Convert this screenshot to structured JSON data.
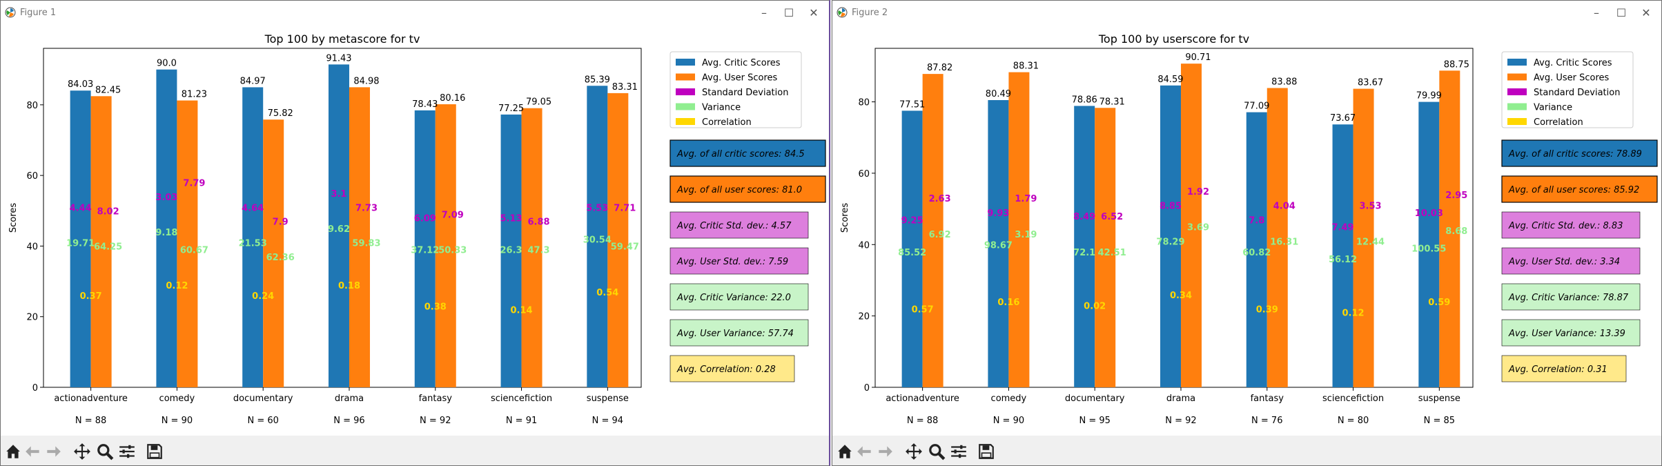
{
  "windows": [
    {
      "title": "Figure 1",
      "chart_data": {
        "type": "bar",
        "title": "Top 100 by metascore for tv",
        "ylabel": "Scores",
        "xlabel": "",
        "ylim": [
          0,
          96
        ],
        "yticks": [
          0,
          20,
          40,
          60,
          80
        ],
        "grid": false,
        "legend_position": "upper-right-outside",
        "categories": [
          "actionadventure",
          "comedy",
          "documentary",
          "drama",
          "fantasy",
          "sciencefiction",
          "suspense"
        ],
        "counts": [
          "N = 88",
          "N = 90",
          "N = 60",
          "N = 96",
          "N = 92",
          "N = 91",
          "N = 94"
        ],
        "series": [
          {
            "name": "Avg. Critic Scores",
            "color": "#1f77b4",
            "values": [
              84.03,
              90.0,
              84.97,
              91.43,
              78.43,
              77.25,
              85.39
            ],
            "labels": [
              "84.03",
              "90.0",
              "84.97",
              "91.43",
              "78.43",
              "77.25",
              "85.39"
            ]
          },
          {
            "name": "Avg. User Scores",
            "color": "#ff7f0e",
            "values": [
              82.45,
              81.23,
              75.82,
              84.98,
              80.16,
              79.05,
              83.31
            ],
            "labels": [
              "82.45",
              "81.23",
              "75.82",
              "84.98",
              "80.16",
              "79.05",
              "83.31"
            ]
          }
        ],
        "legend_only": [
          {
            "name": "Standard Deviation",
            "color": "#bf00bf"
          },
          {
            "name": "Variance",
            "color": "#90ee90"
          },
          {
            "name": "Correlation",
            "color": "#ffd700"
          }
        ],
        "annotations": {
          "critic_std": [
            "4.44",
            "3.03",
            "4.64",
            "3.1",
            "6.09",
            "5.13",
            "5.53"
          ],
          "user_std": [
            "8.02",
            "7.79",
            "7.9",
            "7.73",
            "7.09",
            "6.88",
            "7.71"
          ],
          "critic_var": [
            "19.71",
            "9.18",
            "21.53",
            "9.62",
            "37.12",
            "26.3",
            "30.54"
          ],
          "user_var": [
            "64.25",
            "60.67",
            "62.36",
            "59.83",
            "50.33",
            "47.3",
            "59.47"
          ],
          "correlation": [
            "0.37",
            "0.12",
            "0.24",
            "0.18",
            "0.38",
            "0.14",
            "0.54"
          ],
          "critic_std_y": [
            50,
            53,
            50,
            54,
            47,
            47,
            50
          ],
          "user_std_y": [
            49,
            57,
            46,
            50,
            48,
            46,
            50
          ],
          "critic_var_y": [
            40,
            43,
            40,
            44,
            38,
            38,
            41
          ],
          "user_var_y": [
            39,
            38,
            36,
            40,
            38,
            38,
            39
          ],
          "corr_y": [
            25,
            28,
            25,
            28,
            22,
            21,
            26
          ]
        },
        "summary_boxes": [
          {
            "text": "Avg. of all critic scores: 84.5",
            "bg": "#1f77b4"
          },
          {
            "text": "Avg. of all user scores: 81.0",
            "bg": "#ff7f0e"
          },
          {
            "text": "Avg. Critic Std. dev.: 4.57",
            "bg": "#dd7fdd"
          },
          {
            "text": "Avg. User Std. dev.: 7.59",
            "bg": "#dd7fdd"
          },
          {
            "text": "Avg. Critic Variance: 22.0",
            "bg": "#c8f4c8"
          },
          {
            "text": "Avg. User Variance: 57.74",
            "bg": "#c8f4c8"
          },
          {
            "text": "Avg. Correlation: 0.28",
            "bg": "#ffe98a"
          }
        ]
      }
    },
    {
      "title": "Figure 2",
      "chart_data": {
        "type": "bar",
        "title": "Top 100 by userscore for tv",
        "ylabel": "Scores",
        "xlabel": "",
        "ylim": [
          0,
          95
        ],
        "yticks": [
          0,
          20,
          40,
          60,
          80
        ],
        "grid": false,
        "legend_position": "upper-right-outside",
        "categories": [
          "actionadventure",
          "comedy",
          "documentary",
          "drama",
          "fantasy",
          "sciencefiction",
          "suspense"
        ],
        "counts": [
          "N = 88",
          "N = 90",
          "N = 95",
          "N = 92",
          "N = 76",
          "N = 80",
          "N = 85"
        ],
        "series": [
          {
            "name": "Avg. Critic Scores",
            "color": "#1f77b4",
            "values": [
              77.51,
              80.49,
              78.86,
              84.59,
              77.09,
              73.67,
              79.99
            ],
            "labels": [
              "77.51",
              "80.49",
              "78.86",
              "84.59",
              "77.09",
              "73.67",
              "79.99"
            ]
          },
          {
            "name": "Avg. User Scores",
            "color": "#ff7f0e",
            "values": [
              87.82,
              88.31,
              78.31,
              90.71,
              83.88,
              83.67,
              88.75
            ],
            "labels": [
              "87.82",
              "88.31",
              "78.31",
              "90.71",
              "83.88",
              "83.67",
              "88.75"
            ]
          }
        ],
        "legend_only": [
          {
            "name": "Standard Deviation",
            "color": "#bf00bf"
          },
          {
            "name": "Variance",
            "color": "#90ee90"
          },
          {
            "name": "Correlation",
            "color": "#ffd700"
          }
        ],
        "annotations": {
          "critic_std": [
            "9.25",
            "9.93",
            "8.49",
            "8.85",
            "7.8",
            "7.49",
            "10.03"
          ],
          "user_std": [
            "2.63",
            "1.79",
            "6.52",
            "1.92",
            "4.04",
            "3.53",
            "2.95"
          ],
          "critic_var": [
            "85.52",
            "98.67",
            "72.1",
            "78.29",
            "60.82",
            "56.12",
            "100.55"
          ],
          "user_var": [
            "6.92",
            "3.19",
            "42.51",
            "3.69",
            "16.31",
            "12.44",
            "8.68"
          ],
          "correlation": [
            "0.57",
            "0.16",
            "0.02",
            "0.34",
            "0.39",
            "0.12",
            "0.59"
          ],
          "critic_std_y": [
            46,
            48,
            47,
            50,
            46,
            44,
            48
          ],
          "user_std_y": [
            52,
            52,
            47,
            54,
            50,
            50,
            53
          ],
          "critic_var_y": [
            37,
            39,
            37,
            40,
            37,
            35,
            38
          ],
          "user_var_y": [
            42,
            42,
            37,
            44,
            40,
            40,
            43
          ],
          "corr_y": [
            21,
            23,
            22,
            25,
            21,
            20,
            23
          ]
        },
        "summary_boxes": [
          {
            "text": "Avg. of all critic scores: 78.89",
            "bg": "#1f77b4"
          },
          {
            "text": "Avg. of all user scores: 85.92",
            "bg": "#ff7f0e"
          },
          {
            "text": "Avg. Critic Std. dev.: 8.83",
            "bg": "#dd7fdd"
          },
          {
            "text": "Avg. User Std. dev.: 3.34",
            "bg": "#dd7fdd"
          },
          {
            "text": "Avg. Critic Variance: 78.87",
            "bg": "#c8f4c8"
          },
          {
            "text": "Avg. User Variance: 13.39",
            "bg": "#c8f4c8"
          },
          {
            "text": "Avg. Correlation: 0.31",
            "bg": "#ffe98a"
          }
        ]
      }
    }
  ],
  "toolbar": [
    "home-icon",
    "back-icon",
    "forward-icon",
    "pan-icon",
    "zoom-icon",
    "configure-icon",
    "save-icon"
  ]
}
